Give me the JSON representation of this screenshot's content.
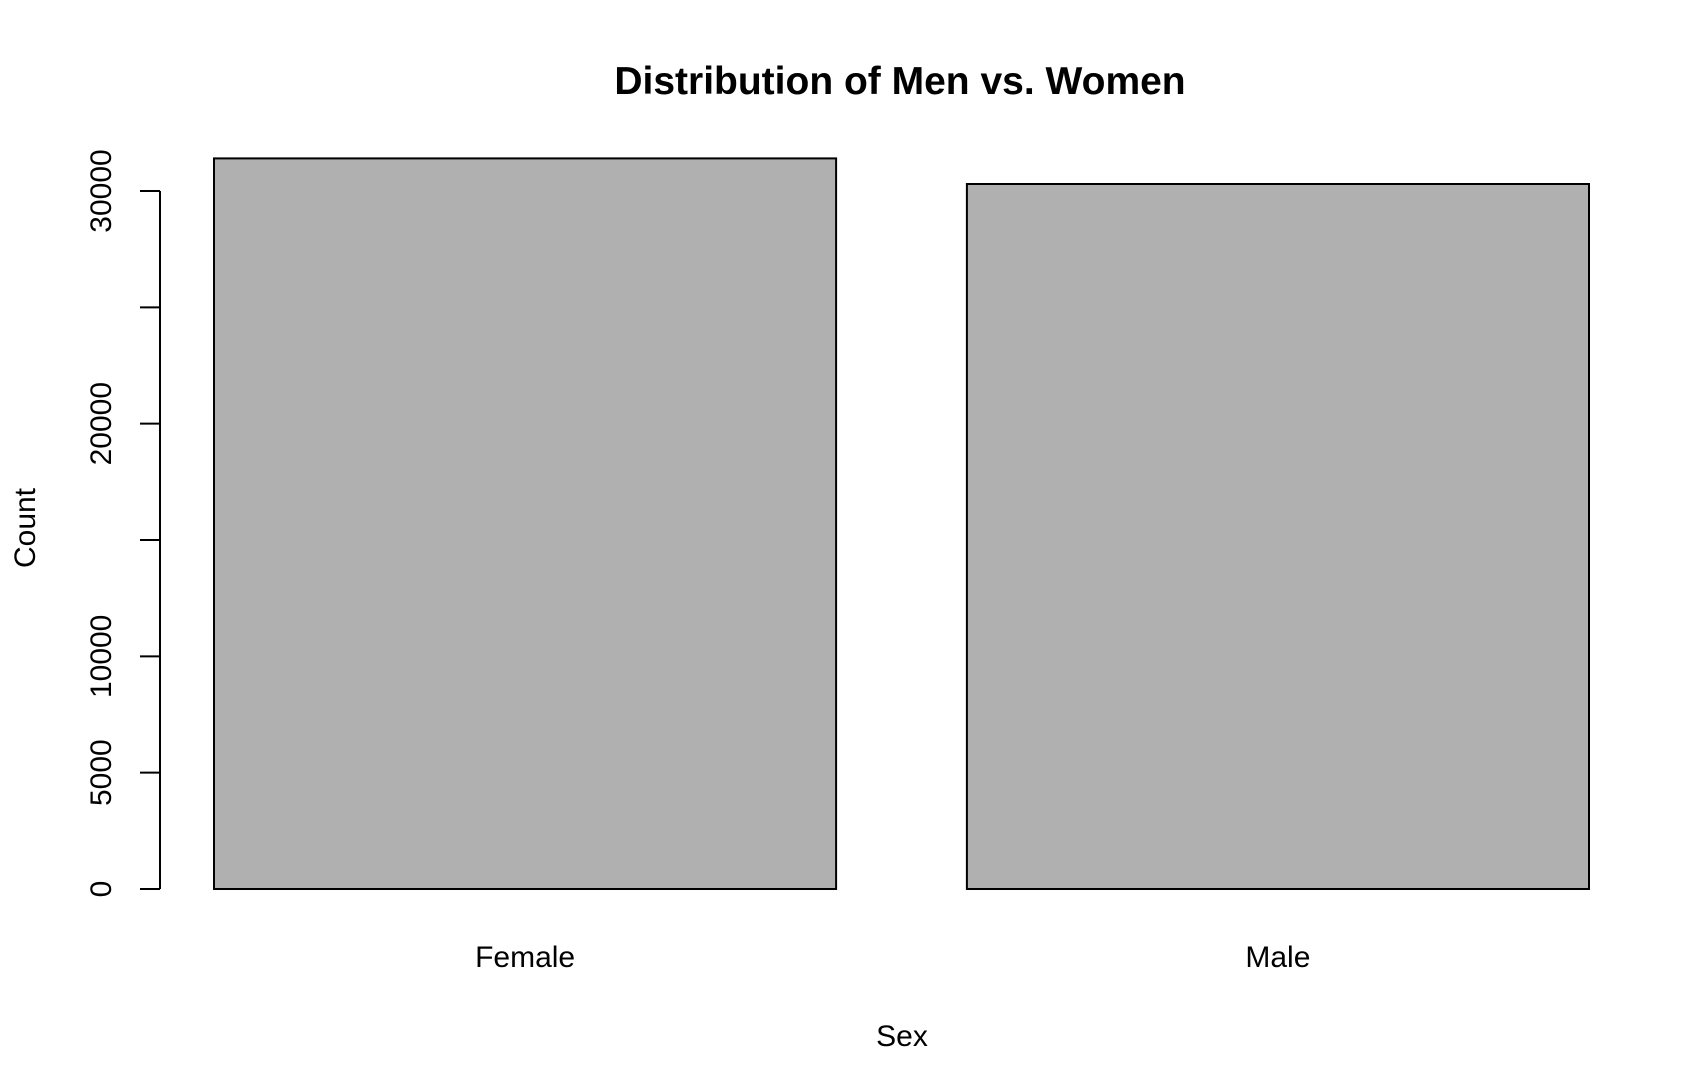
{
  "chart_data": {
    "type": "bar",
    "title": "Distribution of Men vs. Women",
    "xlabel": "Sex",
    "ylabel": "Count",
    "categories": [
      "Female",
      "Male"
    ],
    "values": [
      31400,
      30300
    ],
    "ylim": [
      0,
      30000
    ],
    "yticks": [
      0,
      5000,
      10000,
      15000,
      20000,
      25000,
      30000
    ],
    "ytick_labels": [
      "0",
      "5000",
      "10000",
      "",
      "20000",
      "",
      "30000"
    ],
    "bar_color": "#b0b0b0",
    "bar_edge_color": "#000000",
    "grid": false,
    "legend": "none"
  }
}
